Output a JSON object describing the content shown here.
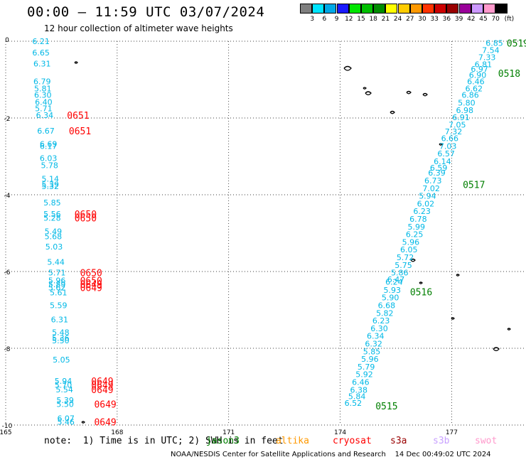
{
  "header": {
    "title": "00:00 – 11:59 UTC 03/07/2024",
    "subtitle": "12 hour collection of altimeter wave heights"
  },
  "color_scale": {
    "unit": "(ft)",
    "bins": [
      {
        "label": "3",
        "color": "#7f7f7f"
      },
      {
        "label": "6",
        "color": "#00e5ff"
      },
      {
        "label": "9",
        "color": "#00a8e6"
      },
      {
        "label": "12",
        "color": "#1a1aff"
      },
      {
        "label": "15",
        "color": "#00e600"
      },
      {
        "label": "18",
        "color": "#00c000"
      },
      {
        "label": "21",
        "color": "#008c00"
      },
      {
        "label": "24",
        "color": "#ffff00"
      },
      {
        "label": "27",
        "color": "#ffcc00"
      },
      {
        "label": "30",
        "color": "#ff9900"
      },
      {
        "label": "33",
        "color": "#ff3300"
      },
      {
        "label": "36",
        "color": "#cc0000"
      },
      {
        "label": "39",
        "color": "#990000"
      },
      {
        "label": "42",
        "color": "#990099"
      },
      {
        "label": "45",
        "color": "#cc99ff"
      },
      {
        "label": "70",
        "color": "#ff99cc"
      },
      {
        "label": "",
        "color": "#000000"
      }
    ]
  },
  "map": {
    "lon_ticks": [
      "165",
      "168",
      "171",
      "174",
      "177"
    ],
    "lat_ticks": [
      "0",
      "-2",
      "-4",
      "-6",
      "-8",
      "-10"
    ],
    "lon_range": [
      165,
      179
    ],
    "lat_range": [
      -10,
      0
    ],
    "gridlines": "dotted"
  },
  "tracks": [
    {
      "color": "#00b8e6",
      "values": [
        "6.21",
        "6.65",
        "6.31",
        "6.79",
        "5.81",
        "6.30",
        "6.40",
        "5.71",
        "6.34",
        "6.67",
        "6.69",
        "6.17",
        "6.03",
        "5.78",
        "5.14",
        "5.39",
        "5.32",
        "5.85",
        "5.56",
        "5.28",
        "5.49",
        "5.68",
        "5.03",
        "5.44",
        "5.71",
        "5.96",
        "5.89",
        "5.62",
        "5.61",
        "5.59",
        "6.31",
        "5.48",
        "5.36",
        "5.50",
        "5.05",
        "5.94",
        "5.70",
        "5.54",
        "5.39",
        "5.50",
        "6.07",
        "5.46"
      ],
      "lat": [
        0.0,
        -0.3,
        -0.58,
        -1.05,
        -1.23,
        -1.4,
        -1.58,
        -1.75,
        -1.93,
        -2.33,
        -2.68,
        -2.73,
        -3.05,
        -3.23,
        -3.58,
        -3.73,
        -3.78,
        -4.2,
        -4.5,
        -4.6,
        -4.95,
        -5.08,
        -5.35,
        -5.75,
        -6.03,
        -6.23,
        -6.33,
        -6.42,
        -6.55,
        -6.88,
        -7.25,
        -7.58,
        -7.73,
        -7.8,
        -8.3,
        -8.85,
        -8.95,
        -9.07,
        -9.35,
        -9.45,
        -9.82,
        -9.92
      ],
      "lon": [
        165.95,
        165.95,
        165.98,
        165.98,
        166.0,
        166.0,
        166.02,
        166.02,
        166.05,
        166.08,
        166.15,
        166.15,
        166.15,
        166.18,
        166.2,
        166.2,
        166.2,
        166.25,
        166.25,
        166.25,
        166.28,
        166.28,
        166.3,
        166.35,
        166.38,
        166.38,
        166.38,
        166.38,
        166.42,
        166.42,
        166.45,
        166.48,
        166.48,
        166.48,
        166.5,
        166.55,
        166.55,
        166.58,
        166.6,
        166.6,
        166.62,
        166.62
      ]
    },
    {
      "color": "#00b8e6",
      "values": [
        "6.85",
        "7.54",
        "7.33",
        "6.81",
        "6.97",
        "6.90",
        "6.46",
        "6.62",
        "6.86",
        "5.80",
        "6.98",
        "6.91",
        "7.05",
        "7.32",
        "6.66",
        "7.03",
        "6.57",
        "6.14",
        "6.59",
        "6.39",
        "6.73",
        "7.02",
        "5.94",
        "6.02",
        "6.23",
        "6.78",
        "5.99",
        "6.25",
        "5.96",
        "6.05",
        "5.72",
        "5.75",
        "5.86",
        "6.47",
        "6.24",
        "5.93",
        "5.90",
        "6.68",
        "5.82",
        "6.23",
        "6.30",
        "6.34",
        "6.32",
        "5.85",
        "5.96",
        "5.79",
        "5.92",
        "6.46",
        "6.38",
        "5.84",
        "6.52"
      ],
      "lat": [
        -0.05,
        -0.23,
        -0.42,
        -0.6,
        -0.72,
        -0.88,
        -1.05,
        -1.23,
        -1.4,
        -1.6,
        -1.8,
        -1.98,
        -2.18,
        -2.35,
        -2.53,
        -2.73,
        -2.93,
        -3.13,
        -3.3,
        -3.43,
        -3.63,
        -3.83,
        -4.03,
        -4.23,
        -4.43,
        -4.63,
        -4.83,
        -5.03,
        -5.23,
        -5.43,
        -5.63,
        -5.83,
        -6.03,
        -6.2,
        -6.27,
        -6.48,
        -6.68,
        -6.88,
        -7.08,
        -7.28,
        -7.48,
        -7.68,
        -7.88,
        -8.08,
        -8.28,
        -8.48,
        -8.68,
        -8.88,
        -9.08,
        -9.25,
        -9.43
      ],
      "lon": [
        178.15,
        178.05,
        177.95,
        177.85,
        177.75,
        177.7,
        177.65,
        177.6,
        177.5,
        177.4,
        177.35,
        177.25,
        177.15,
        177.05,
        176.95,
        176.9,
        176.85,
        176.75,
        176.65,
        176.6,
        176.5,
        176.45,
        176.35,
        176.3,
        176.2,
        176.1,
        176.05,
        176.0,
        175.9,
        175.85,
        175.75,
        175.7,
        175.6,
        175.5,
        175.45,
        175.4,
        175.35,
        175.25,
        175.2,
        175.1,
        175.05,
        174.95,
        174.9,
        174.85,
        174.8,
        174.7,
        174.65,
        174.55,
        174.5,
        174.45,
        174.35
      ]
    }
  ],
  "pass_labels": [
    {
      "text": "0651",
      "lat": -1.93,
      "lon": 166.65,
      "color": "#ff0000"
    },
    {
      "text": "0651",
      "lat": -2.33,
      "lon": 166.7,
      "color": "#ff0000"
    },
    {
      "text": "0650",
      "lat": -4.5,
      "lon": 166.85,
      "color": "#ff0000"
    },
    {
      "text": "0650",
      "lat": -4.6,
      "lon": 166.85,
      "color": "#ff0000"
    },
    {
      "text": "0650",
      "lat": -6.03,
      "lon": 167.0,
      "color": "#ff0000"
    },
    {
      "text": "0650",
      "lat": -6.23,
      "lon": 167.0,
      "color": "#ff0000"
    },
    {
      "text": "0649",
      "lat": -6.33,
      "lon": 167.0,
      "color": "#ff0000"
    },
    {
      "text": "0649",
      "lat": -6.42,
      "lon": 167.0,
      "color": "#ff0000"
    },
    {
      "text": "0649",
      "lat": -8.85,
      "lon": 167.3,
      "color": "#ff0000"
    },
    {
      "text": "0649",
      "lat": -8.95,
      "lon": 167.3,
      "color": "#ff0000"
    },
    {
      "text": "0649",
      "lat": -9.07,
      "lon": 167.3,
      "color": "#ff0000"
    },
    {
      "text": "0649",
      "lat": -9.45,
      "lon": 167.38,
      "color": "#ff0000"
    },
    {
      "text": "0649",
      "lat": -9.92,
      "lon": 167.38,
      "color": "#ff0000"
    },
    {
      "text": "0519",
      "lat": -0.05,
      "lon": 178.48,
      "color": "#007f00"
    },
    {
      "text": "0518",
      "lat": -0.83,
      "lon": 178.25,
      "color": "#007f00"
    },
    {
      "text": "0517",
      "lat": -3.73,
      "lon": 177.3,
      "color": "#007f00"
    },
    {
      "text": "0516",
      "lat": -6.53,
      "lon": 175.88,
      "color": "#007f00"
    },
    {
      "text": "0515",
      "lat": -9.5,
      "lon": 174.95,
      "color": "#007f00"
    }
  ],
  "footer": {
    "note": "note:  1) Time is in UTC; 2) SWH is in feet",
    "satellites": [
      {
        "name": "jason3",
        "color": "#007f00"
      },
      {
        "name": "altika",
        "color": "#ff9900"
      },
      {
        "name": "cryosat",
        "color": "#ff0000"
      },
      {
        "name": "s3a",
        "color": "#990000"
      },
      {
        "name": "s3b",
        "color": "#c8a0ff"
      },
      {
        "name": "swot",
        "color": "#ff99cc"
      }
    ],
    "credit": "NOAA/NESDIS Center for Satellite Applications and Research    14 Dec 00:49:02 UTC 2024"
  }
}
